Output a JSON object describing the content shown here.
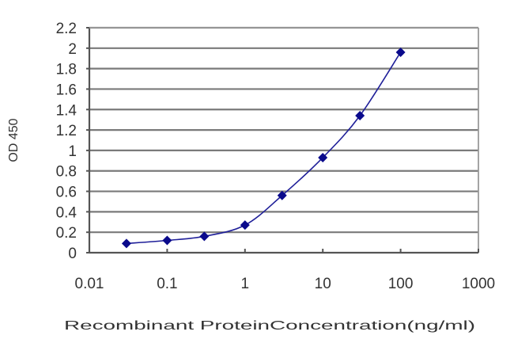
{
  "chart_data": {
    "type": "line",
    "title": "",
    "xlabel": "Recombinant ProteinConcentration(ng/ml)",
    "ylabel": "OD 450",
    "xscale": "log",
    "xlim": [
      0.01,
      1000
    ],
    "ylim": [
      0,
      2.2
    ],
    "x_ticks": [
      "0.01",
      "0.1",
      "1",
      "10",
      "100",
      "1000"
    ],
    "y_ticks": [
      "0",
      "0.2",
      "0.4",
      "0.6",
      "0.8",
      "1",
      "1.2",
      "1.4",
      "1.6",
      "1.8",
      "2",
      "2.2"
    ],
    "grid": {
      "horizontal": true,
      "vertical": false
    },
    "legend": null,
    "series": [
      {
        "name": "OD 450",
        "color": "#1f1f99",
        "marker": "diamond",
        "marker_color": "#0a0a8c",
        "x": [
          0.03,
          0.1,
          0.3,
          1,
          3,
          10,
          30,
          100
        ],
        "values": [
          0.09,
          0.12,
          0.16,
          0.27,
          0.56,
          0.93,
          1.34,
          1.96
        ]
      }
    ]
  }
}
